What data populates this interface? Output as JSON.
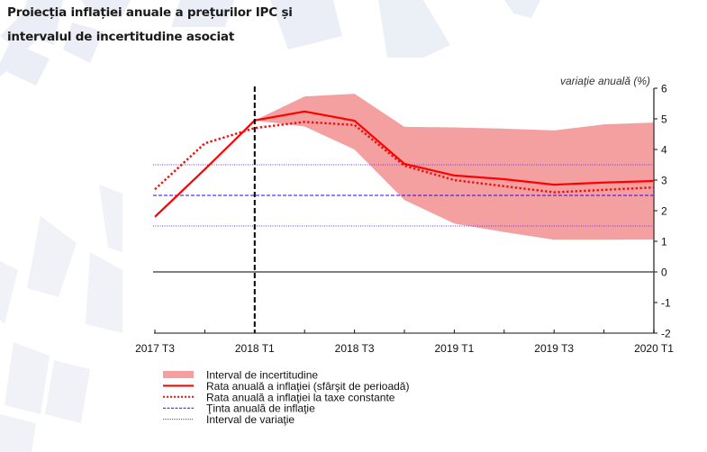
{
  "title": {
    "line1": "Proiecția inflației anuale a prețurilor IPC și",
    "line2": "intervalul de incertitudine asociat"
  },
  "colors": {
    "band": "#f4a0a0",
    "solid_line": "#ff0000",
    "dotted_line": "#ee1111",
    "target_line": "#3300ee",
    "variation_line": "#6633ee",
    "zero_line": "#808080",
    "axis": "#111111",
    "vline": "#000000"
  },
  "chart_data": {
    "type": "line",
    "title": "Proiecția inflației anuale a prețurilor IPC și intervalul de incertitudine asociat",
    "ylabel": "variaţie anuală (%)",
    "xlabel": "",
    "ylim": [
      -2,
      6
    ],
    "yticks": [
      6,
      5,
      4,
      3,
      2,
      1,
      0,
      -1,
      -2
    ],
    "x": [
      "2017 T3",
      "2017 T4",
      "2018 T1",
      "2018 T2",
      "2018 T3",
      "2018 T4",
      "2019 T1",
      "2019 T2",
      "2019 T3",
      "2019 T4",
      "2020 T1"
    ],
    "xtick_labels": [
      "2017 T3",
      "2018 T1",
      "2018 T3",
      "2019 T1",
      "2019 T3",
      "2020 T1"
    ],
    "xtick_label_indices": [
      0,
      2,
      4,
      6,
      8,
      10
    ],
    "projection_start": "2018 T1",
    "grid": false,
    "legend_position": "bottom-left",
    "band": {
      "name": "Interval de incertitudine",
      "start_index": 2,
      "upper": [
        4.95,
        5.73,
        5.82,
        4.74,
        4.72,
        4.68,
        4.62,
        4.82,
        4.88
      ],
      "lower": [
        4.95,
        4.75,
        4.0,
        2.35,
        1.58,
        1.3,
        1.05,
        1.05,
        1.06
      ]
    },
    "series": [
      {
        "name": "Rata anuală a inflaţiei (sfârşit de perioadă)",
        "style": "solid",
        "values": [
          1.8,
          3.35,
          4.95,
          5.24,
          4.94,
          3.53,
          3.15,
          3.03,
          2.85,
          2.92,
          2.97
        ]
      },
      {
        "name": "Rata anuală a inflaţiei la taxe constante",
        "style": "dotted",
        "values": [
          2.7,
          4.2,
          4.7,
          4.9,
          4.8,
          3.47,
          3.0,
          2.8,
          2.6,
          2.68,
          2.76
        ]
      }
    ],
    "reference_lines": [
      {
        "name": "Ţinta anuală de inflaţie",
        "style": "dashed",
        "value": 2.5
      },
      {
        "name": "Interval de variaţie",
        "style": "dotted",
        "value": 3.5
      },
      {
        "name": "Interval de variaţie",
        "style": "dotted",
        "value": 1.5
      }
    ],
    "zero_line": 0
  },
  "legend": [
    {
      "key": "band",
      "label": "Interval de incertitudine"
    },
    {
      "key": "solid",
      "label": "Rata anuală a inflaţiei (sfârşit de perioadă)"
    },
    {
      "key": "dotted",
      "label": "Rata anuală a inflaţiei la taxe constante"
    },
    {
      "key": "target",
      "label": "Ţinta anuală de inflaţie"
    },
    {
      "key": "variation",
      "label": "Interval de variaţie"
    }
  ]
}
